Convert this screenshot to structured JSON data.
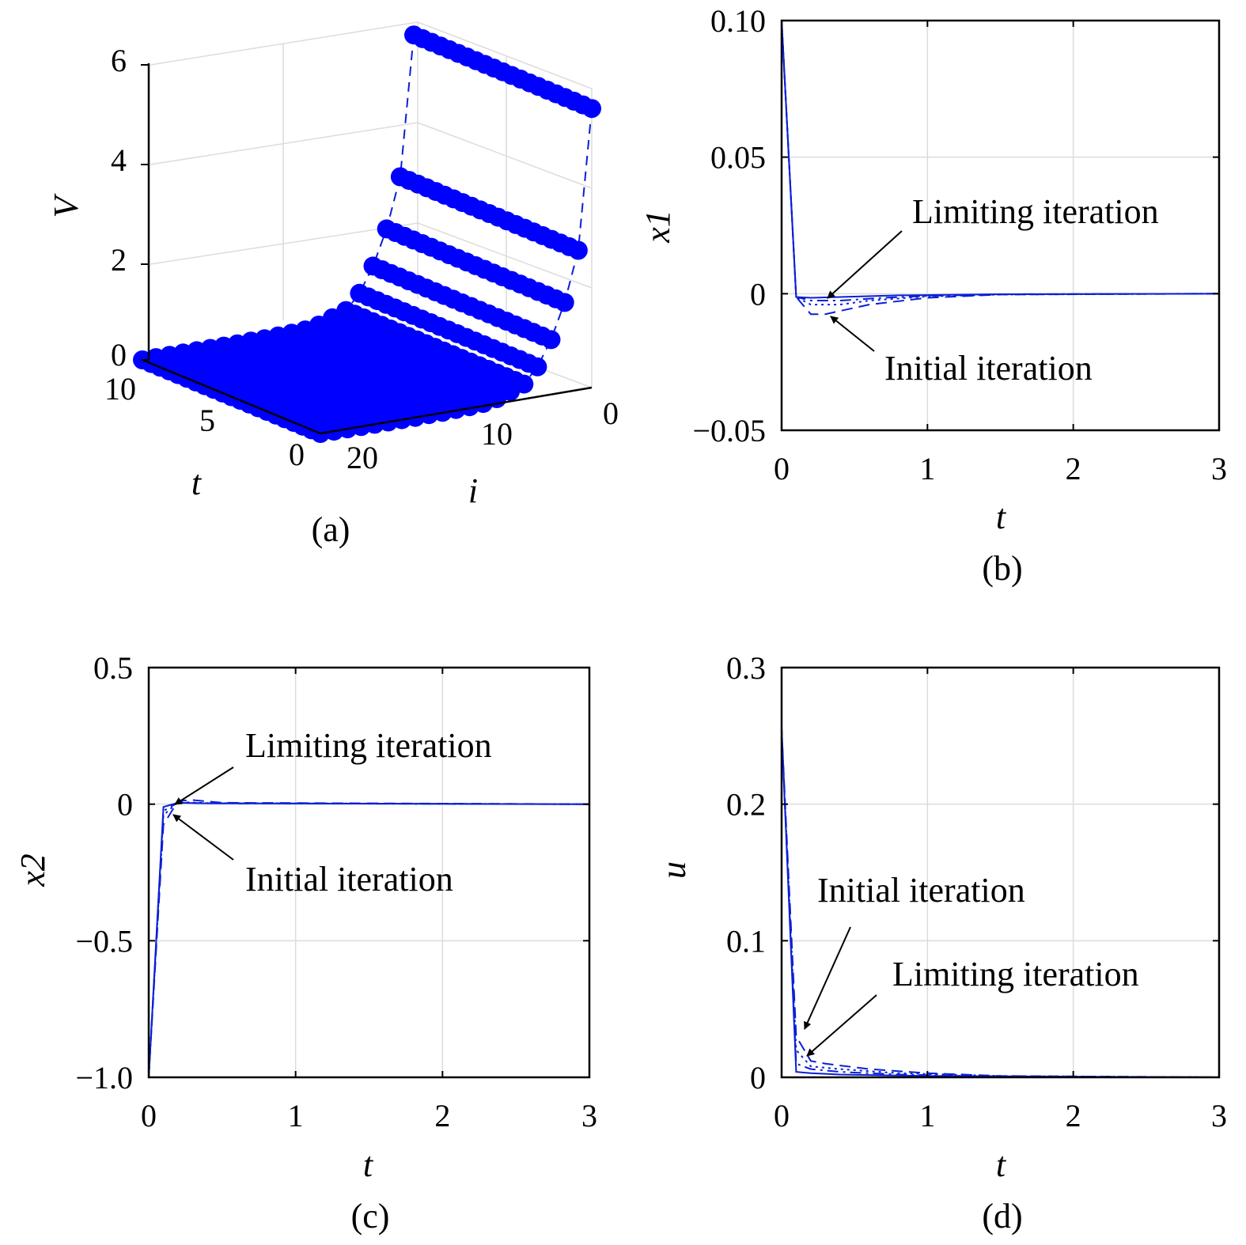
{
  "chart_data": [
    {
      "panel": "a",
      "type": "scatter3d",
      "caption": "(a)",
      "xlabel": "t",
      "ylabel": "i",
      "zlabel": "V",
      "xlim": [
        0,
        10
      ],
      "ylim": [
        0,
        20
      ],
      "zlim": [
        0,
        6
      ],
      "xticks": [
        "10",
        "5",
        "0"
      ],
      "yticks": [
        "20",
        "10",
        "0"
      ],
      "zticks": [
        "6",
        "4",
        "2",
        "0"
      ],
      "iterations": [
        0,
        1,
        2,
        3,
        4,
        5,
        6,
        7,
        8,
        9,
        10,
        11,
        12,
        13,
        14,
        15,
        16,
        17,
        18,
        19,
        20
      ],
      "values": [
        5.6,
        2.8,
        1.8,
        1.1,
        0.6,
        0.3,
        0.2,
        0.1,
        0.05,
        0.03,
        0.02,
        0.01,
        0.01,
        0.0,
        0.0,
        0.0,
        0.0,
        0.0,
        0.0,
        0.0,
        0.0
      ],
      "grid": true
    },
    {
      "panel": "b",
      "type": "line",
      "caption": "(b)",
      "xlabel": "t",
      "ylabel": "x1",
      "xlim": [
        0,
        3
      ],
      "ylim": [
        -0.05,
        0.1
      ],
      "xticks": [
        "0",
        "1",
        "2",
        "3"
      ],
      "yticks": [
        "0.10",
        "0.05",
        "0",
        "−0.05"
      ],
      "grid": true,
      "annotations": [
        "Limiting iteration",
        "Initial iteration"
      ],
      "series": [
        {
          "style": "solid",
          "x": [
            0,
            0.1,
            0.2,
            0.4,
            0.8,
            1.5,
            3
          ],
          "y": [
            0.1,
            -0.0012,
            -0.0015,
            -0.0012,
            -0.0006,
            -0.0002,
            0
          ]
        },
        {
          "style": "dashed",
          "x": [
            0,
            0.1,
            0.2,
            0.3,
            0.6,
            1.0,
            1.5,
            3
          ],
          "y": [
            0.1,
            -0.0012,
            -0.0075,
            -0.0075,
            -0.004,
            -0.0015,
            -0.0003,
            0
          ]
        },
        {
          "style": "dotted",
          "x": [
            0,
            0.1,
            0.2,
            0.4,
            0.6,
            1.0,
            1.5,
            3
          ],
          "y": [
            0.1,
            -0.0012,
            -0.004,
            -0.004,
            -0.0025,
            -0.001,
            -0.0003,
            0
          ]
        },
        {
          "style": "dashdot",
          "x": [
            0,
            0.1,
            0.2,
            0.4,
            0.7,
            1.0,
            1.5,
            3
          ],
          "y": [
            0.1,
            -0.0012,
            -0.0025,
            -0.0025,
            -0.0015,
            -0.0008,
            -0.0002,
            0
          ]
        }
      ]
    },
    {
      "panel": "c",
      "type": "line",
      "caption": "(c)",
      "xlabel": "t",
      "ylabel": "x2",
      "xlim": [
        0,
        3
      ],
      "ylim": [
        -1.0,
        0.5
      ],
      "xticks": [
        "0",
        "1",
        "2",
        "3"
      ],
      "yticks": [
        "0.5",
        "0",
        "−0.5",
        "−1.0"
      ],
      "grid": true,
      "annotations": [
        "Limiting iteration",
        "Initial iteration"
      ],
      "series": [
        {
          "style": "solid",
          "x": [
            0,
            0.1,
            0.2,
            0.4,
            3
          ],
          "y": [
            -1.0,
            -0.01,
            0.005,
            0.003,
            0
          ]
        },
        {
          "style": "dashed",
          "x": [
            0,
            0.1,
            0.2,
            0.3,
            0.5,
            3
          ],
          "y": [
            -1.0,
            -0.075,
            0.012,
            0.015,
            0.005,
            0
          ]
        },
        {
          "style": "dotted",
          "x": [
            0,
            0.1,
            0.2,
            0.4,
            3
          ],
          "y": [
            -1.0,
            -0.04,
            0.008,
            0.004,
            0
          ]
        },
        {
          "style": "dashdot",
          "x": [
            0,
            0.1,
            0.2,
            0.4,
            3
          ],
          "y": [
            -1.0,
            -0.025,
            0.006,
            0.003,
            0
          ]
        }
      ]
    },
    {
      "panel": "d",
      "type": "line",
      "caption": "(d)",
      "xlabel": "t",
      "ylabel": "u",
      "xlim": [
        0,
        3
      ],
      "ylim": [
        0,
        0.3
      ],
      "xticks": [
        "0",
        "1",
        "2",
        "3"
      ],
      "yticks": [
        "0.3",
        "0.2",
        "0.1",
        "0"
      ],
      "grid": true,
      "annotations": [
        "Initial iteration",
        "Limiting iteration"
      ],
      "series": [
        {
          "style": "solid",
          "x": [
            0,
            0.1,
            0.2,
            0.4,
            1.0,
            3
          ],
          "y": [
            0.255,
            0.004,
            0.003,
            0.002,
            0.001,
            0
          ]
        },
        {
          "style": "dashed",
          "x": [
            0,
            0.1,
            0.2,
            0.3,
            0.6,
            1.0,
            1.5,
            3
          ],
          "y": [
            0.255,
            0.03,
            0.012,
            0.01,
            0.006,
            0.003,
            0.001,
            0
          ]
        },
        {
          "style": "dotted",
          "x": [
            0,
            0.1,
            0.2,
            0.4,
            0.8,
            1.5,
            3
          ],
          "y": [
            0.255,
            0.02,
            0.008,
            0.006,
            0.003,
            0.001,
            0
          ]
        },
        {
          "style": "dashdot",
          "x": [
            0,
            0.1,
            0.2,
            0.4,
            0.8,
            1.5,
            3
          ],
          "y": [
            0.255,
            0.01,
            0.006,
            0.004,
            0.002,
            0.0005,
            0
          ]
        }
      ]
    }
  ]
}
